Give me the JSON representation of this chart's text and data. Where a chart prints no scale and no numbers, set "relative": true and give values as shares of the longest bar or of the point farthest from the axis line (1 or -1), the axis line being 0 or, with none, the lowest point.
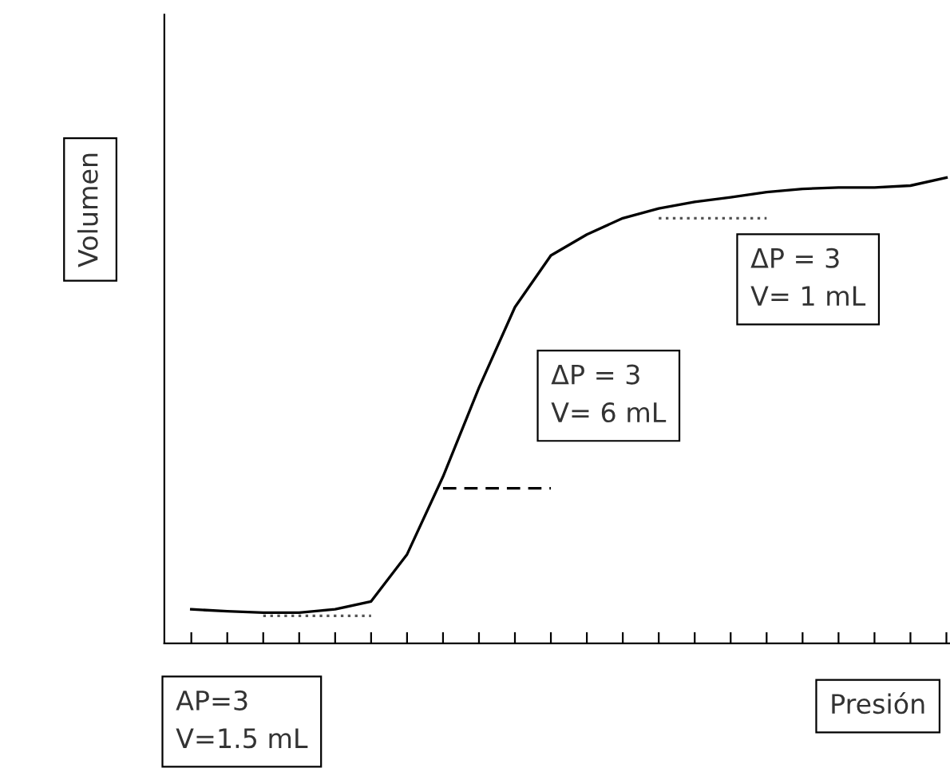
{
  "chart_data": {
    "type": "line",
    "relative": true,
    "xlabel": "Presión",
    "ylabel": "Volumen",
    "categories": [
      null,
      null,
      null,
      null,
      null,
      null,
      null,
      null,
      null,
      null,
      null,
      null,
      null,
      null,
      null,
      null,
      null,
      null,
      null,
      null,
      null,
      null
    ],
    "series": [
      {
        "color": "#000000",
        "line_style": "solid",
        "values": [
          0.073,
          0.069,
          0.066,
          0.066,
          0.073,
          0.09,
          0.191,
          0.358,
          0.549,
          0.722,
          0.833,
          0.878,
          0.913,
          0.934,
          0.948,
          0.958,
          0.969,
          0.976,
          0.979,
          0.979,
          0.983,
          1.0
        ]
      },
      {
        "color": "#555555",
        "line_style": "dotted",
        "values": [
          null,
          null,
          0.059,
          0.059,
          0.059,
          0.059,
          null,
          null,
          null,
          null,
          null,
          null,
          null,
          null,
          null,
          null,
          null,
          null,
          null,
          null,
          null,
          null
        ]
      },
      {
        "color": "#000000",
        "line_style": "dashed",
        "values": [
          null,
          null,
          null,
          null,
          null,
          null,
          null,
          0.333,
          0.333,
          0.333,
          0.333,
          null,
          null,
          null,
          null,
          null,
          null,
          null,
          null,
          null,
          null,
          null
        ]
      },
      {
        "color": "#555555",
        "line_style": "dotted",
        "values": [
          null,
          null,
          null,
          null,
          null,
          null,
          null,
          null,
          null,
          null,
          null,
          null,
          null,
          0.913,
          0.913,
          0.913,
          0.913,
          null,
          null,
          null,
          null,
          null
        ]
      }
    ],
    "annotations": [
      "AP=3\nV=1.5 mL",
      "ΔP = 3\nV= 6 mL",
      "ΔP = 3\nV= 1 mL"
    ],
    "grid": false,
    "legend": false,
    "marker": "none"
  }
}
